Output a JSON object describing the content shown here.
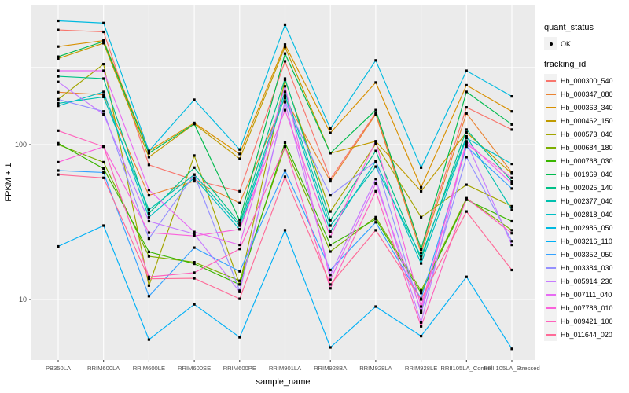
{
  "figure": {
    "xlabel": "sample_name",
    "ylabel": "FPKM + 1",
    "y_tick_labels": [
      "100",
      "10"
    ],
    "colors": {
      "panel_bg": "#ebebeb",
      "grid": "#ffffff",
      "axis_text": "#4d4d4d",
      "tick_mark": "#333333",
      "point": "#000000",
      "legend_key_bg": "#f2f2f2"
    }
  },
  "legend": {
    "quant_status_title": "quant_status",
    "quant_status_items": [
      {
        "label": "OK",
        "marker": "point-icon"
      }
    ],
    "tracking_id_title": "tracking_id"
  },
  "chart_data": {
    "type": "line",
    "title": "",
    "xlabel": "sample_name",
    "ylabel": "FPKM + 1",
    "yscale": "log10",
    "yticks": [
      10,
      100
    ],
    "minor_yticks": [
      31.6,
      316
    ],
    "ylim": [
      4.05,
      747
    ],
    "grid": true,
    "legend_position": "right",
    "categories": [
      "PB350LA",
      "RRIM600LA",
      "RRIM600LE",
      "RRIM600SE",
      "RRIM600PE",
      "RRIM901LA",
      "RRIM928BA",
      "RRIM928LA",
      "RRIM928LE",
      "RRII105LA_Control",
      "RRII105LA_Stressed"
    ],
    "quant_status": "OK",
    "series": [
      {
        "name": "Hb_000300_540",
        "color": "#F8766D",
        "values": [
          550,
          535,
          74,
          59,
          50,
          345,
          60,
          160,
          21,
          174,
          125
        ]
      },
      {
        "name": "Hb_000347_080",
        "color": "#EA8331",
        "values": [
          218,
          210,
          47,
          58,
          42,
          200,
          58,
          157,
          20,
          159,
          66
        ]
      },
      {
        "name": "Hb_000363_340",
        "color": "#D89000",
        "values": [
          430,
          470,
          91,
          138,
          87,
          443,
          119,
          252,
          53,
          242,
          164
        ]
      },
      {
        "name": "Hb_000462_150",
        "color": "#C09B00",
        "values": [
          360,
          452,
          83,
          136,
          81,
          427,
          88,
          105,
          50,
          120,
          65
        ]
      },
      {
        "name": "Hb_000573_040",
        "color": "#A3A500",
        "values": [
          196,
          331,
          12.3,
          85,
          12.5,
          262,
          37,
          101,
          34,
          55,
          40
        ]
      },
      {
        "name": "Hb_000684_180",
        "color": "#7CAE00",
        "values": [
          100,
          77,
          19,
          17.4,
          13.2,
          97,
          20.4,
          34,
          11.4,
          45,
          28
        ]
      },
      {
        "name": "Hb_000768_030",
        "color": "#39B600",
        "values": [
          102,
          70,
          20.3,
          17,
          12.5,
          103,
          22.5,
          33,
          11,
          44,
          32
        ]
      },
      {
        "name": "Hb_001969_040",
        "color": "#00BB4E",
        "values": [
          370,
          464,
          88,
          136,
          32.5,
          387,
          88,
          167,
          21.2,
          219,
          135
        ]
      },
      {
        "name": "Hb_002025_140",
        "color": "#00C087",
        "values": [
          276,
          267,
          36,
          71,
          31,
          267,
          32.5,
          91,
          18.2,
          125,
          58
        ]
      },
      {
        "name": "Hb_002377_040",
        "color": "#00C0AF",
        "values": [
          185,
          203,
          38,
          64,
          30,
          219,
          30,
          72,
          19,
          113,
          38
        ]
      },
      {
        "name": "Hb_002818_040",
        "color": "#00BFC4",
        "values": [
          178,
          219,
          34,
          61,
          28.4,
          207,
          27.5,
          78,
          17.1,
          110,
          75
        ]
      },
      {
        "name": "Hb_002986_050",
        "color": "#00BAE0",
        "values": [
          630,
          610,
          91,
          195,
          93,
          595,
          127,
          350,
          71,
          300,
          205
        ]
      },
      {
        "name": "Hb_003216_110",
        "color": "#00B0F6",
        "values": [
          22,
          30,
          5.5,
          9.3,
          5.7,
          28,
          4.9,
          9,
          5.8,
          14,
          4.8
        ]
      },
      {
        "name": "Hb_003352_050",
        "color": "#35A2FF",
        "values": [
          68,
          66,
          10.5,
          21.6,
          15.2,
          68,
          15.5,
          31.5,
          10.1,
          97,
          52
        ]
      },
      {
        "name": "Hb_003384_030",
        "color": "#9590FF",
        "values": [
          196,
          164,
          24.7,
          64,
          11.4,
          190,
          47,
          78,
          8.2,
          83,
          23.8
        ]
      },
      {
        "name": "Hb_005914_230",
        "color": "#C77CFF",
        "values": [
          254,
          157,
          32,
          26.5,
          11.2,
          188,
          14.4,
          60,
          7.1,
          104,
          22.5
        ]
      },
      {
        "name": "Hb_007111_040",
        "color": "#E76BF3",
        "values": [
          300,
          300,
          51,
          27.3,
          22.5,
          238,
          13.4,
          56,
          8.5,
          105,
          56
        ]
      },
      {
        "name": "Hb_007786_010",
        "color": "#FA62DB",
        "values": [
          77,
          97,
          27,
          25.7,
          28.4,
          167,
          25.4,
          105,
          9,
          101,
          61
        ]
      },
      {
        "name": "Hb_009421_100",
        "color": "#FF62BC",
        "values": [
          123,
          97,
          14,
          14.9,
          21.2,
          97,
          11.8,
          50,
          6.7,
          45,
          26.8
        ]
      },
      {
        "name": "Hb_011644_020",
        "color": "#FF6A98",
        "values": [
          64,
          61,
          13.6,
          13.7,
          10.1,
          62,
          12.5,
          28,
          10,
          37,
          15.5
        ]
      }
    ]
  }
}
